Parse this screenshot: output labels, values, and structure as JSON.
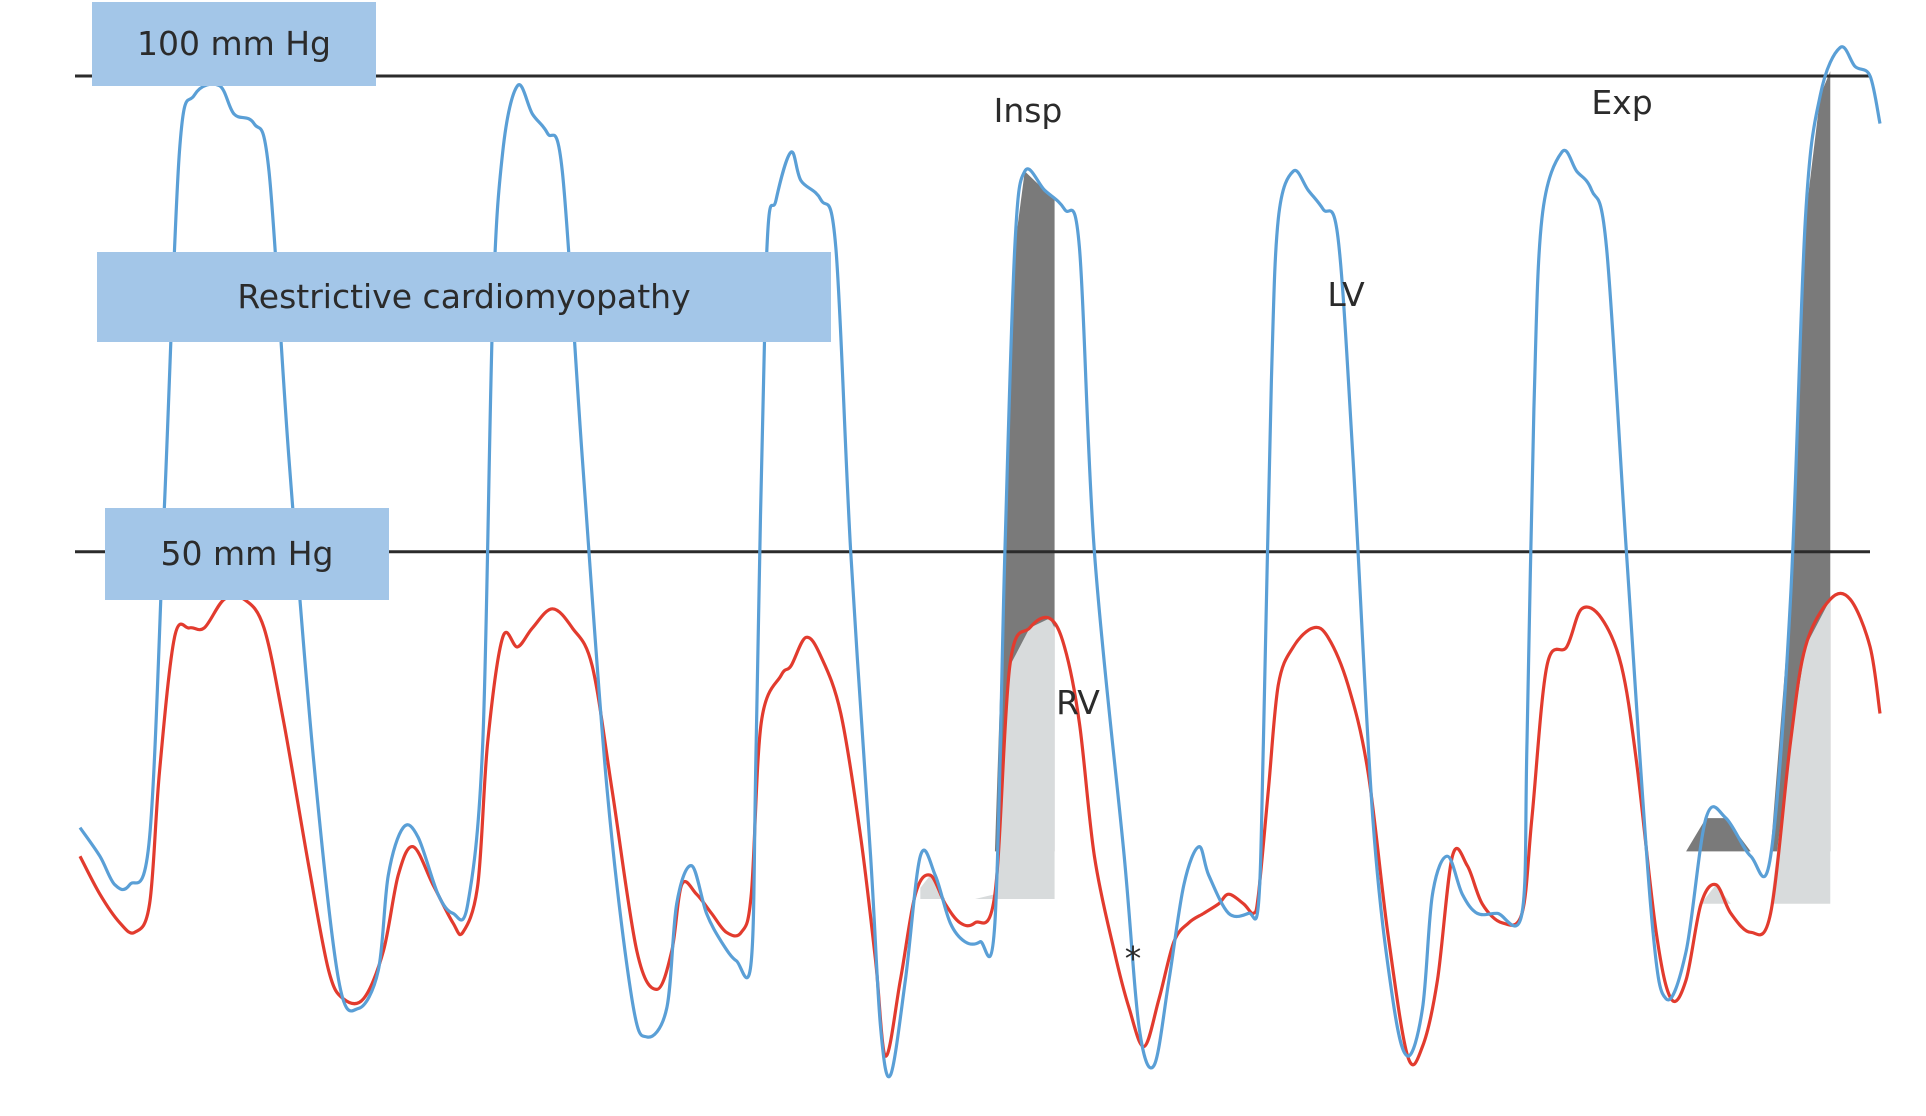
{
  "chart_data": {
    "type": "line",
    "title": "Restrictive cardiomyopathy",
    "reference_lines": [
      {
        "label": "100 mm Hg",
        "y": 100
      },
      {
        "label": "50 mm Hg",
        "y": 50
      }
    ],
    "ylim": [
      -5,
      104
    ],
    "xlim": [
      0,
      18.1
    ],
    "grid": false,
    "colors": {
      "LV": "#5a9fd6",
      "RV": "#e23b2e",
      "lv_area_fill": "#7a7a7a",
      "rv_area_fill": "#d8dbdc",
      "label_box": "#a3c6e8",
      "reference_line": "#2b2b2b"
    },
    "annotations": {
      "insp": "Insp",
      "exp": "Exp",
      "lv": "LV",
      "rv": "RV",
      "asterisk": "*"
    },
    "shaded_beats": [
      {
        "label": "Insp",
        "x_start": 8.45,
        "x_end": 9.8,
        "lv_base": 18.5,
        "rv_base": 13.5
      },
      {
        "label": "Exp",
        "x_start": 16.1,
        "x_end": 17.6,
        "lv_base": 18.5,
        "rv_base": 13.0
      }
    ],
    "series": [
      {
        "name": "LV",
        "points": [
          [
            0.0,
            21
          ],
          [
            0.2,
            18
          ],
          [
            0.35,
            15
          ],
          [
            0.5,
            15
          ],
          [
            0.7,
            20
          ],
          [
            0.85,
            55
          ],
          [
            1.0,
            92
          ],
          [
            1.15,
            98
          ],
          [
            1.4,
            99
          ],
          [
            1.55,
            96
          ],
          [
            1.75,
            95
          ],
          [
            1.9,
            90
          ],
          [
            2.1,
            60
          ],
          [
            2.35,
            28
          ],
          [
            2.6,
            5
          ],
          [
            2.8,
            2
          ],
          [
            3.0,
            6
          ],
          [
            3.1,
            16
          ],
          [
            3.25,
            21
          ],
          [
            3.4,
            20
          ],
          [
            3.6,
            14
          ],
          [
            3.75,
            12
          ],
          [
            3.9,
            13
          ],
          [
            4.05,
            30
          ],
          [
            4.15,
            75
          ],
          [
            4.25,
            92
          ],
          [
            4.4,
            99
          ],
          [
            4.55,
            96
          ],
          [
            4.7,
            94
          ],
          [
            4.85,
            90
          ],
          [
            5.05,
            60
          ],
          [
            5.3,
            25
          ],
          [
            5.55,
            3
          ],
          [
            5.7,
            -1
          ],
          [
            5.9,
            2
          ],
          [
            6.0,
            13
          ],
          [
            6.15,
            17
          ],
          [
            6.3,
            12
          ],
          [
            6.45,
            9
          ],
          [
            6.6,
            7
          ],
          [
            6.75,
            7
          ],
          [
            6.8,
            30
          ],
          [
            6.9,
            80
          ],
          [
            7.0,
            87
          ],
          [
            7.15,
            92
          ],
          [
            7.25,
            89
          ],
          [
            7.45,
            87
          ],
          [
            7.6,
            82
          ],
          [
            7.75,
            50
          ],
          [
            7.95,
            18
          ],
          [
            8.05,
            0
          ],
          [
            8.15,
            -5
          ],
          [
            8.3,
            5
          ],
          [
            8.45,
            18
          ],
          [
            8.6,
            16
          ],
          [
            8.75,
            11
          ],
          [
            8.9,
            9
          ],
          [
            9.05,
            9
          ],
          [
            9.2,
            11
          ],
          [
            9.3,
            50
          ],
          [
            9.4,
            82
          ],
          [
            9.5,
            90
          ],
          [
            9.7,
            88
          ],
          [
            9.9,
            86
          ],
          [
            10.05,
            82
          ],
          [
            10.2,
            50
          ],
          [
            10.5,
            18
          ],
          [
            10.65,
            0
          ],
          [
            10.8,
            -4
          ],
          [
            10.95,
            5
          ],
          [
            11.1,
            15
          ],
          [
            11.25,
            19
          ],
          [
            11.35,
            16
          ],
          [
            11.55,
            12
          ],
          [
            11.75,
            12
          ],
          [
            11.85,
            13
          ],
          [
            11.9,
            30
          ],
          [
            11.98,
            68
          ],
          [
            12.05,
            85
          ],
          [
            12.2,
            90
          ],
          [
            12.35,
            88
          ],
          [
            12.5,
            86
          ],
          [
            12.65,
            83
          ],
          [
            12.8,
            60
          ],
          [
            13.0,
            22
          ],
          [
            13.2,
            3
          ],
          [
            13.35,
            -3
          ],
          [
            13.5,
            2
          ],
          [
            13.6,
            14
          ],
          [
            13.75,
            18
          ],
          [
            13.9,
            14
          ],
          [
            14.05,
            12
          ],
          [
            14.25,
            12
          ],
          [
            14.5,
            12
          ],
          [
            14.55,
            30
          ],
          [
            14.62,
            65
          ],
          [
            14.7,
            85
          ],
          [
            14.9,
            92
          ],
          [
            15.05,
            90
          ],
          [
            15.2,
            88
          ],
          [
            15.35,
            82
          ],
          [
            15.55,
            50
          ],
          [
            15.8,
            12
          ],
          [
            15.95,
            3
          ],
          [
            16.15,
            8
          ],
          [
            16.35,
            22
          ],
          [
            16.55,
            22
          ],
          [
            16.8,
            18
          ],
          [
            17.0,
            18
          ],
          [
            17.2,
            45
          ],
          [
            17.35,
            85
          ],
          [
            17.5,
            98
          ],
          [
            17.7,
            103
          ],
          [
            17.85,
            101
          ],
          [
            18.0,
            100
          ],
          [
            18.1,
            95
          ]
        ]
      },
      {
        "name": "RV",
        "points": [
          [
            0.0,
            18
          ],
          [
            0.2,
            14
          ],
          [
            0.4,
            11
          ],
          [
            0.55,
            10
          ],
          [
            0.7,
            13
          ],
          [
            0.8,
            27
          ],
          [
            0.95,
            41
          ],
          [
            1.1,
            42
          ],
          [
            1.25,
            42
          ],
          [
            1.45,
            45
          ],
          [
            1.65,
            45
          ],
          [
            1.85,
            42
          ],
          [
            2.05,
            32
          ],
          [
            2.3,
            17
          ],
          [
            2.5,
            6
          ],
          [
            2.65,
            3
          ],
          [
            2.85,
            3
          ],
          [
            3.05,
            8
          ],
          [
            3.2,
            16
          ],
          [
            3.35,
            19
          ],
          [
            3.55,
            15
          ],
          [
            3.75,
            11
          ],
          [
            3.85,
            10
          ],
          [
            4.0,
            15
          ],
          [
            4.1,
            30
          ],
          [
            4.25,
            41
          ],
          [
            4.4,
            40
          ],
          [
            4.55,
            42
          ],
          [
            4.75,
            44
          ],
          [
            4.95,
            42
          ],
          [
            5.15,
            38
          ],
          [
            5.35,
            25
          ],
          [
            5.6,
            8
          ],
          [
            5.8,
            4
          ],
          [
            5.95,
            8
          ],
          [
            6.05,
            15
          ],
          [
            6.2,
            14
          ],
          [
            6.35,
            12
          ],
          [
            6.5,
            10
          ],
          [
            6.65,
            10
          ],
          [
            6.75,
            14
          ],
          [
            6.85,
            32
          ],
          [
            7.05,
            37
          ],
          [
            7.15,
            38
          ],
          [
            7.3,
            41
          ],
          [
            7.45,
            39
          ],
          [
            7.65,
            33
          ],
          [
            7.85,
            20
          ],
          [
            8.0,
            7
          ],
          [
            8.1,
            -3
          ],
          [
            8.25,
            5
          ],
          [
            8.4,
            14
          ],
          [
            8.55,
            16
          ],
          [
            8.7,
            13
          ],
          [
            8.85,
            11
          ],
          [
            9.0,
            11
          ],
          [
            9.2,
            14
          ],
          [
            9.35,
            38
          ],
          [
            9.55,
            42
          ],
          [
            9.75,
            43
          ],
          [
            9.9,
            40
          ],
          [
            10.05,
            32
          ],
          [
            10.2,
            18
          ],
          [
            10.4,
            8
          ],
          [
            10.55,
            2
          ],
          [
            10.7,
            -2
          ],
          [
            10.85,
            3
          ],
          [
            11.0,
            9
          ],
          [
            11.15,
            11
          ],
          [
            11.3,
            12
          ],
          [
            11.45,
            13
          ],
          [
            11.55,
            14
          ],
          [
            11.7,
            13
          ],
          [
            11.8,
            12
          ],
          [
            11.85,
            14
          ],
          [
            11.95,
            25
          ],
          [
            12.05,
            36
          ],
          [
            12.2,
            40
          ],
          [
            12.4,
            42
          ],
          [
            12.55,
            41
          ],
          [
            12.75,
            36
          ],
          [
            12.95,
            27
          ],
          [
            13.15,
            10
          ],
          [
            13.35,
            -3
          ],
          [
            13.5,
            -2
          ],
          [
            13.65,
            5
          ],
          [
            13.8,
            18
          ],
          [
            13.95,
            17
          ],
          [
            14.1,
            13
          ],
          [
            14.3,
            11
          ],
          [
            14.5,
            12
          ],
          [
            14.6,
            22
          ],
          [
            14.75,
            38
          ],
          [
            14.95,
            40
          ],
          [
            15.1,
            44
          ],
          [
            15.3,
            43
          ],
          [
            15.5,
            38
          ],
          [
            15.65,
            28
          ],
          [
            15.85,
            10
          ],
          [
            16.0,
            3
          ],
          [
            16.15,
            5
          ],
          [
            16.3,
            13
          ],
          [
            16.45,
            15
          ],
          [
            16.6,
            12
          ],
          [
            16.8,
            10
          ],
          [
            17.0,
            12
          ],
          [
            17.2,
            30
          ],
          [
            17.35,
            40
          ],
          [
            17.6,
            45
          ],
          [
            17.8,
            45
          ],
          [
            18.0,
            40
          ],
          [
            18.1,
            33
          ]
        ]
      }
    ]
  }
}
